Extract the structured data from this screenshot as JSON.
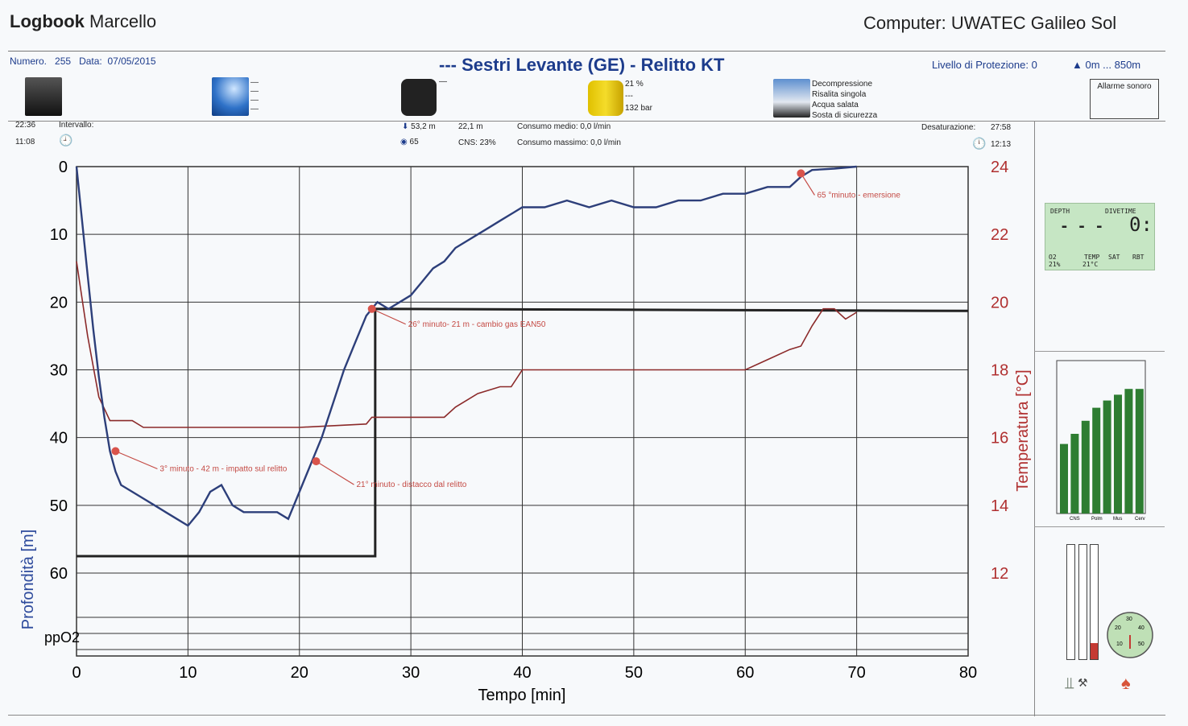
{
  "header": {
    "logbook_label": "Logbook",
    "owner": "Marcello",
    "computer": "Computer: UWATEC Galileo Sol"
  },
  "dive": {
    "numero_label": "Numero.",
    "numero": "255",
    "data_label": "Data:",
    "data": "07/05/2015",
    "title": "---  Sestri Levante (GE) - Relitto KT",
    "protection": "Livello di Protezione: 0",
    "altitude": "0m ... 850m",
    "alarm": "Allarme sonoro"
  },
  "info": {
    "o2": "21 %",
    "o2_dash": "---",
    "pressure": "132 bar",
    "conditions": [
      "Decompressione",
      "Risalita singola",
      "Acqua salata",
      "Sosta di sicurezza"
    ],
    "start_time": "22:36",
    "interval_label": "Intervallo:",
    "dive_time": "11:08",
    "max_depth": "53,2 m",
    "avg_depth": "22,1 m",
    "avg_consumption": "Consumo medio:  0,0 l/min",
    "val_65": "65",
    "cns": "CNS: 23%",
    "max_consumption": "Consumo massimo:  0,0 l/min",
    "desat_label": "Desaturazione:",
    "desat": "27:58",
    "surface_time": "12:13"
  },
  "lcd": {
    "depth_label": "DEPTH",
    "divetime_label": "DIVETIME",
    "depth": "- - -",
    "divetime": "0:",
    "o2_label": "O2",
    "o2": "21%",
    "temp_label": "TEMP",
    "temp": "21°C",
    "sat_label": "SAT",
    "rbt_label": "RBT"
  },
  "side_bars": {
    "labels": [
      "CNS",
      "Polm",
      "Mus",
      "Cerv"
    ],
    "values": [
      0.48,
      0.55,
      0.64,
      0.73,
      0.78,
      0.82,
      0.86,
      0.86
    ]
  },
  "gauge": {
    "ticks": [
      "10",
      "20",
      "30",
      "40",
      "50"
    ]
  },
  "chart_data": {
    "type": "line",
    "xlabel": "Tempo [min]",
    "ylabel": "Profondità [m]",
    "y2label": "Temperatura [°C]",
    "xlim": [
      0,
      80
    ],
    "ylim": [
      0,
      60
    ],
    "y2lim": [
      12,
      24
    ],
    "x_ticks": [
      "0",
      "10",
      "20",
      "30",
      "40",
      "50",
      "60",
      "70",
      "80"
    ],
    "y_ticks": [
      "0",
      "10",
      "20",
      "30",
      "40",
      "50",
      "60"
    ],
    "y2_ticks": [
      "24",
      "22",
      "20",
      "18",
      "16",
      "14",
      "12"
    ],
    "ppo2_label": "ppO2",
    "series": [
      {
        "name": "Profondità",
        "color": "#2d3f7a",
        "x": [
          0,
          0.5,
          1,
          1.5,
          2,
          2.5,
          3,
          3.5,
          4,
          5,
          6,
          7,
          8,
          9,
          10,
          11,
          12,
          13,
          14,
          15,
          16,
          17,
          18,
          19,
          20,
          21,
          22,
          23,
          24,
          25,
          26,
          27,
          28,
          29,
          30,
          31,
          32,
          33,
          34,
          35,
          36,
          37,
          38,
          39,
          40,
          42,
          44,
          46,
          48,
          50,
          52,
          54,
          56,
          58,
          60,
          62,
          64,
          65,
          66,
          68,
          70
        ],
        "y": [
          0,
          8,
          16,
          24,
          31,
          37,
          42,
          45,
          47,
          48,
          49,
          50,
          51,
          52,
          53,
          51,
          48,
          47,
          50,
          51,
          51,
          51,
          51,
          52,
          48,
          44,
          40,
          35,
          30,
          26,
          22,
          20,
          21,
          20,
          19,
          17,
          15,
          14,
          12,
          11,
          10,
          9,
          8,
          7,
          6,
          6,
          5,
          6,
          5,
          6,
          6,
          5,
          5,
          4,
          4,
          3,
          3,
          1.5,
          0.5,
          0.3,
          0
        ]
      },
      {
        "name": "Temperatura",
        "color": "#8b2a2a",
        "x": [
          0,
          1,
          2,
          3,
          4,
          5,
          6,
          10,
          20,
          26,
          26.5,
          28,
          30,
          33,
          34,
          35,
          36,
          38,
          39,
          40,
          44,
          46,
          48,
          50,
          52,
          54,
          56,
          58,
          60,
          62,
          64,
          65,
          66,
          67,
          68,
          69,
          70
        ],
        "y": [
          21.2,
          19,
          17.2,
          16.5,
          16.5,
          16.5,
          16.3,
          16.3,
          16.3,
          16.4,
          16.6,
          16.6,
          16.6,
          16.6,
          16.9,
          17.1,
          17.3,
          17.5,
          17.5,
          18,
          18,
          18,
          18,
          18,
          18,
          18,
          18,
          18,
          18,
          18.3,
          18.6,
          18.7,
          19.3,
          19.8,
          19.8,
          19.5,
          19.7
        ]
      }
    ],
    "annotations": [
      {
        "x": 3.5,
        "y": 42,
        "text": "3° minuto - 42 m - impatto sul relitto"
      },
      {
        "x": 21.5,
        "y": 43.5,
        "text": "21° minuto - distacco dal relitto"
      },
      {
        "x": 26.5,
        "y": 21,
        "text": "26° minuto- 21 m - cambio gas EAN50"
      },
      {
        "x": 65,
        "y": 1,
        "text": "65 °minuto - emersione"
      }
    ]
  }
}
